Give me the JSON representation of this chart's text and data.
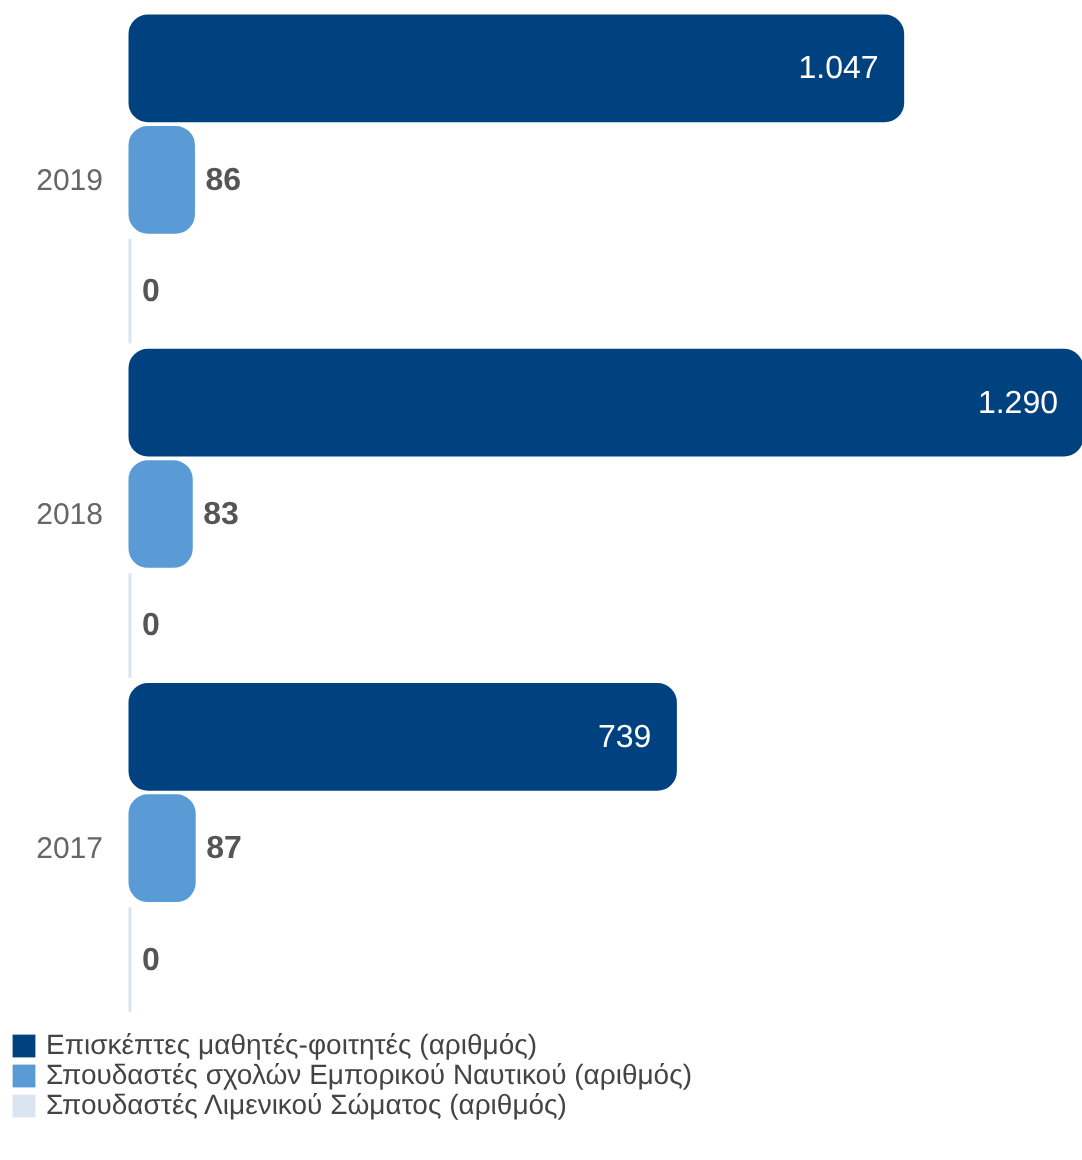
{
  "chart_data": {
    "type": "bar",
    "orientation": "horizontal",
    "categories": [
      "2019",
      "2018",
      "2017"
    ],
    "series": [
      {
        "name": "Επισκέπτες μαθητές-φοιτητές (αριθμός)",
        "color": "#00427f",
        "values": [
          1047,
          1290,
          739
        ],
        "value_labels": [
          "1.047",
          "1.290",
          "739"
        ]
      },
      {
        "name": "Σπουδαστές σχολών Εμπορικού Ναυτικού (αριθμός)",
        "color": "#5a9bd5",
        "values": [
          86,
          83,
          87
        ],
        "value_labels": [
          "86",
          "83",
          "87"
        ]
      },
      {
        "name": "Σπουδαστές Λιμενικού Σώματος (αριθμός)",
        "color": "#dbe5f1",
        "values": [
          0,
          0,
          0
        ],
        "value_labels": [
          "0",
          "0",
          "0"
        ]
      }
    ],
    "xlim": [
      0,
      1290
    ],
    "legend": "bottom left",
    "tick_labels": "y"
  }
}
